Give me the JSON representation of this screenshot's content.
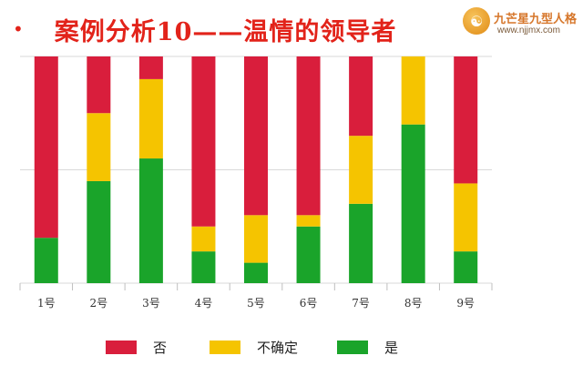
{
  "header": {
    "bullet": "•",
    "title": "案例分析10——温情的领导者"
  },
  "brand": {
    "logo_char": "☯",
    "name": "九芒星九型人格",
    "url": "www.njjmx.com"
  },
  "colors": {
    "no": "#d91e3c",
    "unsure": "#f5c400",
    "yes": "#1aa42a",
    "title": "#e2231a",
    "grid": "#d9d9d9"
  },
  "chart_data": {
    "type": "bar",
    "stacked": true,
    "normalized_to": 100,
    "ylim": [
      0,
      100
    ],
    "grid": true,
    "legend_position": "bottom",
    "categories": [
      "1号",
      "2号",
      "3号",
      "4号",
      "5号",
      "6号",
      "7号",
      "8号",
      "9号"
    ],
    "series": [
      {
        "name": "是",
        "color": "#1aa42a",
        "values": [
          20,
          45,
          55,
          14,
          9,
          25,
          35,
          70,
          14
        ]
      },
      {
        "name": "不确定",
        "color": "#f5c400",
        "values": [
          0,
          30,
          35,
          11,
          21,
          5,
          30,
          30,
          30
        ]
      },
      {
        "name": "否",
        "color": "#d91e3c",
        "values": [
          80,
          25,
          10,
          75,
          70,
          70,
          35,
          0,
          56
        ]
      }
    ],
    "legend": [
      {
        "label": "否",
        "color": "#d91e3c"
      },
      {
        "label": "不确定",
        "color": "#f5c400"
      },
      {
        "label": "是",
        "color": "#1aa42a"
      }
    ]
  }
}
